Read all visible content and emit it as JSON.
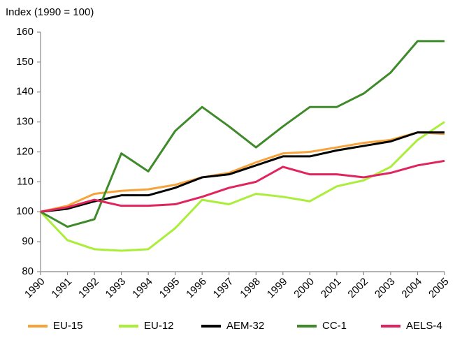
{
  "chart_data": {
    "type": "line",
    "y_label": "Index (1990 = 100)",
    "categories": [
      "1990",
      "1991",
      "1992",
      "1993",
      "1994",
      "1995",
      "1996",
      "1997",
      "1998",
      "1999",
      "2000",
      "2001",
      "2002",
      "2003",
      "2004",
      "2005"
    ],
    "ylim": [
      80,
      160
    ],
    "yticks": [
      80,
      90,
      100,
      110,
      120,
      130,
      140,
      150,
      160
    ],
    "grid": false,
    "legend": "bottom",
    "series": [
      {
        "name": "EU-15",
        "color": "#f5a33a",
        "values": [
          100,
          102,
          106,
          107,
          107.5,
          109,
          111.5,
          113,
          116.5,
          119.5,
          120,
          121.5,
          123,
          124,
          126.5,
          126
        ]
      },
      {
        "name": "EU-12",
        "color": "#aaee3a",
        "values": [
          100,
          90.5,
          87.5,
          87,
          87.5,
          94.5,
          104,
          102.5,
          106,
          105,
          103.5,
          108.5,
          110.5,
          115,
          124,
          130
        ]
      },
      {
        "name": "AEM-32",
        "color": "#000000",
        "values": [
          100,
          101,
          103.5,
          105.5,
          105.5,
          108,
          111.5,
          112.5,
          115.5,
          118.5,
          118.5,
          120.5,
          122,
          123.5,
          126.5,
          126.5
        ]
      },
      {
        "name": "CC-1",
        "color": "#3f8a2a",
        "values": [
          100,
          95,
          97.5,
          119.5,
          113.5,
          127,
          135,
          128.5,
          121.5,
          128.5,
          135,
          135,
          139.5,
          146.5,
          157,
          157
        ]
      },
      {
        "name": "AELS-4",
        "color": "#e0245e",
        "values": [
          100,
          101.5,
          104,
          102,
          102,
          102.5,
          105,
          108,
          110,
          115,
          112.5,
          112.5,
          111.5,
          113,
          115.5,
          117
        ]
      }
    ]
  }
}
